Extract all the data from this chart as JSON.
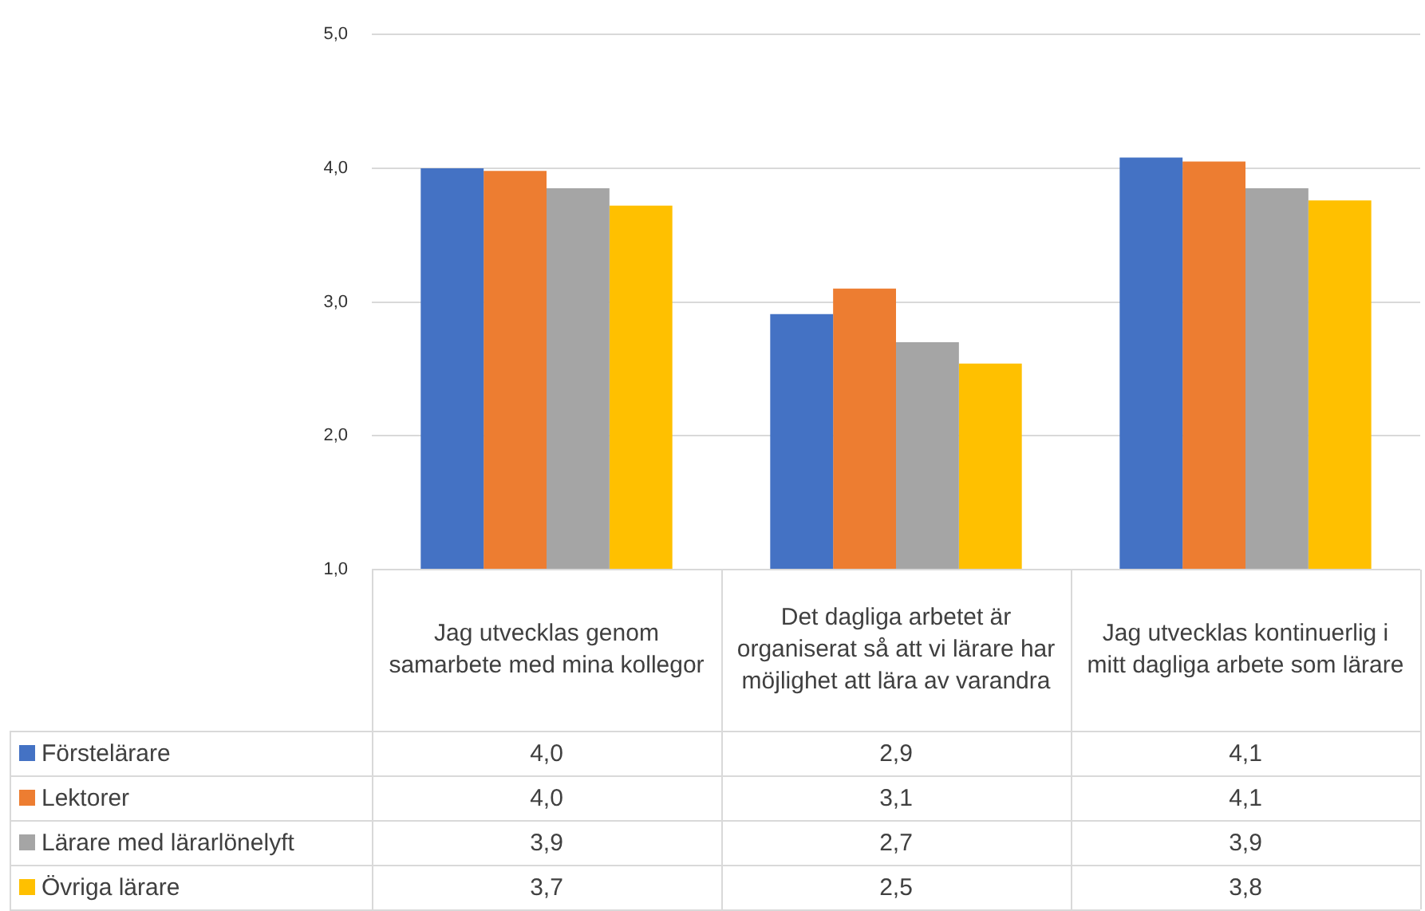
{
  "chart_data": {
    "type": "bar",
    "categories": [
      "Jag utvecklas genom samarbete med mina kollegor",
      "Det dagliga arbetet är organiserat så att vi lärare har möjlighet att lära av varandra",
      "Jag utvecklas kontinuerlig i mitt dagliga arbete som lärare"
    ],
    "series": [
      {
        "name": "Förstelärare",
        "color": "#4472c4",
        "values": [
          4.0,
          2.91,
          4.08
        ],
        "value_labels": [
          "4,0",
          "2,9",
          "4,1"
        ]
      },
      {
        "name": "Lektorer",
        "color": "#ed7d31",
        "values": [
          3.98,
          3.1,
          4.05
        ],
        "value_labels": [
          "4,0",
          "3,1",
          "4,1"
        ]
      },
      {
        "name": "Lärare med lärarlönelyft",
        "color": "#a5a5a5",
        "values": [
          3.85,
          2.7,
          3.85
        ],
        "value_labels": [
          "3,9",
          "2,7",
          "3,9"
        ]
      },
      {
        "name": "Övriga lärare",
        "color": "#ffc000",
        "values": [
          3.72,
          2.54,
          3.76
        ],
        "value_labels": [
          "3,7",
          "2,5",
          "3,8"
        ]
      }
    ],
    "ylim": [
      1,
      5
    ],
    "yticks": [
      {
        "value": 1,
        "label": "1,0"
      },
      {
        "value": 2,
        "label": "2,0"
      },
      {
        "value": 3,
        "label": "3,0"
      },
      {
        "value": 4,
        "label": "4,0"
      },
      {
        "value": 5,
        "label": "5,0"
      }
    ],
    "grid": "y",
    "legend": "bottom"
  }
}
